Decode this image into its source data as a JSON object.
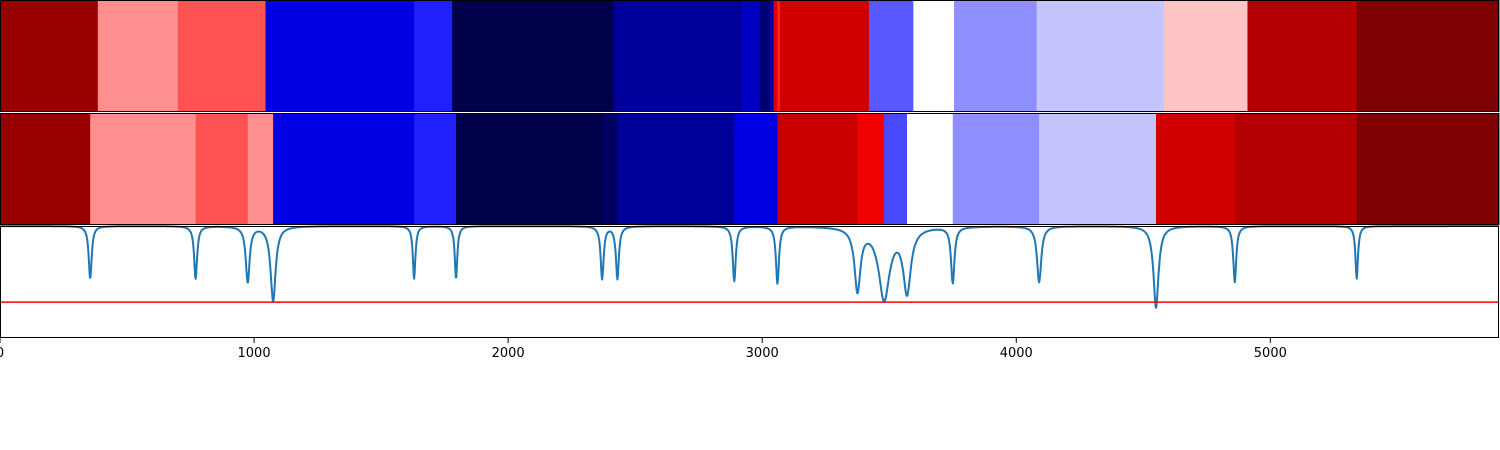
{
  "chart_data": {
    "type": "heatmap",
    "title": "",
    "xlabel": "",
    "ylabel": "",
    "xlim": [
      0,
      5900
    ],
    "xticks": [
      0,
      1000,
      2000,
      3000,
      4000,
      5000
    ],
    "tick_labels": [
      "0",
      "1000",
      "2000",
      "3000",
      "4000",
      "5000"
    ],
    "grid": false,
    "colormap": "seismic",
    "heatmap_rows": [
      {
        "segments": [
          {
            "x0": 0,
            "x1": 385,
            "color": "#990000"
          },
          {
            "x0": 385,
            "x1": 700,
            "color": "#ff8e8e"
          },
          {
            "x0": 700,
            "x1": 1045,
            "color": "#ff5252"
          },
          {
            "x0": 1045,
            "x1": 1630,
            "color": "#0000e2"
          },
          {
            "x0": 1630,
            "x1": 1780,
            "color": "#2020ff"
          },
          {
            "x0": 1780,
            "x1": 2415,
            "color": "#00004a"
          },
          {
            "x0": 2415,
            "x1": 2920,
            "color": "#00009a"
          },
          {
            "x0": 2920,
            "x1": 2990,
            "color": "#0000c4"
          },
          {
            "x0": 2990,
            "x1": 3030,
            "color": "#000074"
          },
          {
            "x0": 3030,
            "x1": 3045,
            "color": "#0000a8"
          },
          {
            "x0": 3045,
            "x1": 3060,
            "color": "#e00000"
          },
          {
            "x0": 3060,
            "x1": 3070,
            "color": "#ff2020"
          },
          {
            "x0": 3070,
            "x1": 3420,
            "color": "#d00000"
          },
          {
            "x0": 3420,
            "x1": 3595,
            "color": "#5858ff"
          },
          {
            "x0": 3595,
            "x1": 3755,
            "color": "#ffffff"
          },
          {
            "x0": 3755,
            "x1": 4080,
            "color": "#8e8eff"
          },
          {
            "x0": 4080,
            "x1": 4580,
            "color": "#c4c4ff"
          },
          {
            "x0": 4580,
            "x1": 4910,
            "color": "#ffc4c4"
          },
          {
            "x0": 4910,
            "x1": 5340,
            "color": "#b40000"
          },
          {
            "x0": 5340,
            "x1": 5900,
            "color": "#7f0000"
          }
        ]
      },
      {
        "segments": [
          {
            "x0": 0,
            "x1": 355,
            "color": "#990000"
          },
          {
            "x0": 355,
            "x1": 770,
            "color": "#ff8e8e"
          },
          {
            "x0": 770,
            "x1": 975,
            "color": "#ff5252"
          },
          {
            "x0": 975,
            "x1": 1075,
            "color": "#ff8e8e"
          },
          {
            "x0": 1075,
            "x1": 1630,
            "color": "#0000e2"
          },
          {
            "x0": 1630,
            "x1": 1795,
            "color": "#2020ff"
          },
          {
            "x0": 1795,
            "x1": 2370,
            "color": "#00004a"
          },
          {
            "x0": 2370,
            "x1": 2430,
            "color": "#000060"
          },
          {
            "x0": 2430,
            "x1": 2890,
            "color": "#00009a"
          },
          {
            "x0": 2890,
            "x1": 3060,
            "color": "#0000e2"
          },
          {
            "x0": 3060,
            "x1": 3375,
            "color": "#c80000"
          },
          {
            "x0": 3375,
            "x1": 3480,
            "color": "#f00000"
          },
          {
            "x0": 3480,
            "x1": 3570,
            "color": "#4848ff"
          },
          {
            "x0": 3570,
            "x1": 3750,
            "color": "#ffffff"
          },
          {
            "x0": 3750,
            "x1": 4090,
            "color": "#8e8eff"
          },
          {
            "x0": 4090,
            "x1": 4550,
            "color": "#c4c4ff"
          },
          {
            "x0": 4550,
            "x1": 4860,
            "color": "#d00000"
          },
          {
            "x0": 4860,
            "x1": 5340,
            "color": "#b40000"
          },
          {
            "x0": 5340,
            "x1": 5900,
            "color": "#7f0000"
          }
        ]
      }
    ],
    "line_panel": {
      "line_color": "#1f77b4",
      "threshold_color": "#ff0000",
      "ylim": [
        0,
        1
      ],
      "baseline": 1.0,
      "threshold": 0.32,
      "dips": [
        {
          "x": 355,
          "depth": 0.47,
          "width": 7
        },
        {
          "x": 770,
          "depth": 0.47,
          "width": 7
        },
        {
          "x": 975,
          "depth": 0.5,
          "width": 9
        },
        {
          "x": 1075,
          "depth": 0.67,
          "width": 12
        },
        {
          "x": 1630,
          "depth": 0.47,
          "width": 6
        },
        {
          "x": 1795,
          "depth": 0.47,
          "width": 6
        },
        {
          "x": 2370,
          "depth": 0.47,
          "width": 7
        },
        {
          "x": 2430,
          "depth": 0.47,
          "width": 7
        },
        {
          "x": 2890,
          "depth": 0.49,
          "width": 7
        },
        {
          "x": 3060,
          "depth": 0.51,
          "width": 7
        },
        {
          "x": 3375,
          "depth": 0.56,
          "width": 14
        },
        {
          "x": 3480,
          "depth": 0.64,
          "width": 26
        },
        {
          "x": 3570,
          "depth": 0.57,
          "width": 18
        },
        {
          "x": 3750,
          "depth": 0.5,
          "width": 8
        },
        {
          "x": 4090,
          "depth": 0.5,
          "width": 10
        },
        {
          "x": 4550,
          "depth": 0.73,
          "width": 12
        },
        {
          "x": 4860,
          "depth": 0.5,
          "width": 7
        },
        {
          "x": 5340,
          "depth": 0.47,
          "width": 6
        }
      ]
    }
  }
}
